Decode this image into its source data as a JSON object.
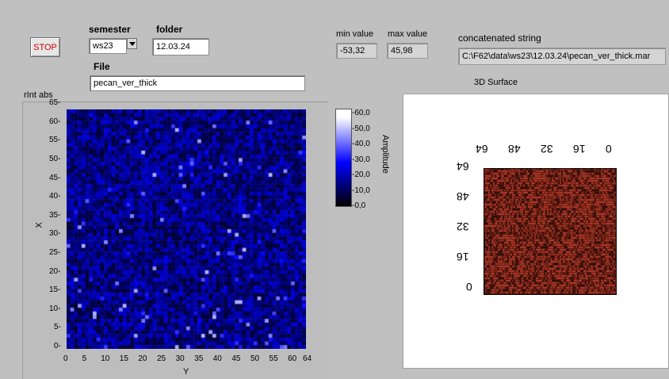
{
  "controls": {
    "stop_label": "STOP",
    "semester_label": "semester",
    "semester_value": "ws23",
    "folder_label": "folder",
    "folder_value": "12.03.24",
    "file_label": "File",
    "file_value": "pecan_ver_thick"
  },
  "indicators": {
    "min_label": "min value",
    "min_value": "-53,32",
    "max_label": "max value",
    "max_value": "45,98",
    "concat_label": "concatenated string",
    "concat_value": "C:\\F62\\data\\ws23\\12.03.24\\pecan_ver_thick.mar"
  },
  "intensity_graph": {
    "title": "rInt  abs",
    "xlabel": "Y",
    "ylabel": "X",
    "x_ticks": [
      "0",
      "5",
      "10",
      "15",
      "20",
      "25",
      "30",
      "35",
      "40",
      "45",
      "50",
      "55",
      "60",
      "64"
    ],
    "y_ticks": [
      "0",
      "5",
      "10",
      "15",
      "20",
      "25",
      "30",
      "35",
      "40",
      "45",
      "50",
      "55",
      "60",
      "65"
    ],
    "colorbar_label": "Amplitude",
    "colorbar_ticks": [
      "60,0",
      "50,0",
      "40,0",
      "30,0",
      "20,0",
      "10,0",
      "0,0"
    ]
  },
  "surface": {
    "title": "3D Surface",
    "top_ticks": [
      "64",
      "48",
      "32",
      "16",
      "0"
    ],
    "left_ticks": [
      "64",
      "48",
      "32",
      "16",
      "0"
    ]
  },
  "chart_data": {
    "type": "heatmap",
    "title": "rInt  abs",
    "xlabel": "Y",
    "ylabel": "X",
    "xlim": [
      0,
      64
    ],
    "ylim": [
      0,
      65
    ],
    "zlim": [
      0,
      60
    ],
    "colorbar_label": "Amplitude",
    "note_values": "64x64 grid of noisy intensities, mostly 5-25, sporadic bright pixels up to ~45"
  }
}
